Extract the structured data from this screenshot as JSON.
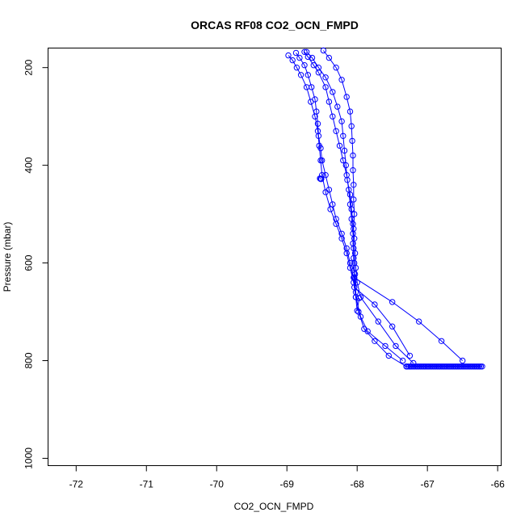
{
  "chart_data": {
    "type": "scatter",
    "title": "ORCAS RF08 CO2_OCN_FMPD",
    "xlabel": "CO2_OCN_FMPD",
    "ylabel": "Pressure (mbar)",
    "xlim": [
      -72.4,
      -65.95
    ],
    "ylim": [
      1015,
      160
    ],
    "y_reversed": true,
    "grid": false,
    "x_ticks": [
      -72,
      -71,
      -70,
      -69,
      -68,
      -67,
      -66
    ],
    "y_ticks": [
      200,
      400,
      600,
      800,
      1000
    ],
    "series_color": "#0000ff",
    "series": [
      {
        "x": [
          -68.75,
          -68.7,
          -68.62,
          -68.55,
          -68.45,
          -68.4,
          -68.35,
          -68.3,
          -68.25,
          -68.2,
          -68.15,
          -68.12,
          -68.1,
          -68.08,
          -68.06,
          -68.05,
          -68.04,
          -68.04,
          -67.5,
          -67.12,
          -66.8,
          -66.5
        ],
        "y": [
          168,
          178,
          195,
          210,
          240,
          270,
          300,
          330,
          360,
          390,
          420,
          450,
          480,
          510,
          540,
          570,
          600,
          630,
          680,
          720,
          760,
          800
        ]
      },
      {
        "x": [
          -68.48,
          -68.4,
          -68.3,
          -68.22,
          -68.15,
          -68.1,
          -68.08,
          -68.07,
          -68.06,
          -68.06,
          -68.05,
          -68.05,
          -68.04,
          -68.05,
          -68.06,
          -68.05,
          -68.04,
          -68.04,
          -67.75,
          -67.5,
          -67.25
        ],
        "y": [
          165,
          180,
          200,
          225,
          260,
          290,
          320,
          350,
          380,
          410,
          440,
          470,
          500,
          530,
          560,
          590,
          620,
          650,
          685,
          730,
          790
        ]
      },
      {
        "x": [
          -68.98,
          -68.92,
          -68.86,
          -68.8,
          -68.72,
          -68.66,
          -68.6,
          -68.56,
          -68.54,
          -68.52,
          -68.5,
          -68.45,
          -68.38,
          -68.3,
          -68.22,
          -68.15,
          -68.1,
          -68.05,
          -68.02,
          -67.95,
          -67.85,
          -67.6,
          -67.35
        ],
        "y": [
          175,
          185,
          200,
          215,
          240,
          270,
          300,
          330,
          360,
          390,
          420,
          455,
          490,
          520,
          550,
          580,
          610,
          640,
          670,
          710,
          740,
          770,
          800
        ]
      },
      {
        "x": [
          -68.87,
          -68.82,
          -68.75,
          -68.7,
          -68.65,
          -68.6,
          -68.58,
          -68.56,
          -68.55,
          -68.52,
          -68.5,
          -68.45,
          -68.4,
          -68.35,
          -68.3,
          -68.22,
          -68.15,
          -68.1,
          -68.05,
          -68.02,
          -67.98,
          -67.9,
          -67.75,
          -67.55,
          -67.3
        ],
        "y": [
          170,
          180,
          195,
          215,
          240,
          265,
          290,
          315,
          340,
          365,
          390,
          420,
          450,
          480,
          510,
          540,
          570,
          600,
          630,
          660,
          700,
          735,
          760,
          790,
          812
        ]
      },
      {
        "x": [
          -68.72,
          -68.64,
          -68.55,
          -68.45,
          -68.35,
          -68.28,
          -68.22,
          -68.2,
          -68.18,
          -68.16,
          -68.14,
          -68.1,
          -68.08,
          -68.06,
          -68.04,
          -68.03,
          -68.02,
          -68.0,
          -67.95,
          -67.7,
          -67.45,
          -67.2
        ],
        "y": [
          168,
          180,
          200,
          220,
          250,
          280,
          310,
          340,
          370,
          400,
          430,
          460,
          490,
          520,
          550,
          580,
          610,
          640,
          670,
          720,
          770,
          805
        ]
      },
      {
        "x": [
          -67.3,
          -67.28,
          -67.26,
          -67.24,
          -67.22,
          -67.2,
          -67.18,
          -67.16,
          -67.14,
          -67.12,
          -67.1,
          -67.08,
          -67.06,
          -67.04,
          -67.02,
          -67.0,
          -66.98,
          -66.96,
          -66.94,
          -66.92,
          -66.9,
          -66.88,
          -66.86,
          -66.84,
          -66.82,
          -66.8,
          -66.78,
          -66.76,
          -66.74,
          -66.72,
          -66.7,
          -66.68,
          -66.66,
          -66.64,
          -66.62,
          -66.6,
          -66.58,
          -66.56,
          -66.54,
          -66.52,
          -66.5,
          -66.48,
          -66.46,
          -66.44,
          -66.42,
          -66.4,
          -66.38,
          -66.36,
          -66.34,
          -66.32,
          -66.3,
          -66.28,
          -66.26,
          -66.24,
          -66.22
        ],
        "y": [
          812,
          812,
          812,
          812,
          812,
          812,
          812,
          812,
          812,
          812,
          812,
          812,
          812,
          812,
          812,
          812,
          812,
          812,
          812,
          812,
          812,
          812,
          812,
          812,
          812,
          812,
          812,
          812,
          812,
          812,
          812,
          812,
          812,
          812,
          812,
          812,
          812,
          812,
          812,
          812,
          812,
          812,
          812,
          812,
          812,
          812,
          812,
          812,
          812,
          812,
          812,
          812,
          812,
          812,
          812
        ]
      },
      {
        "x": [
          -68.53,
          -68.52,
          -68.51
        ],
        "y": [
          427,
          428,
          428
        ]
      },
      {
        "x": [
          -68.03,
          -68.02,
          -68.0,
          -67.97
        ],
        "y": [
          623,
          670,
          698,
          672
        ]
      }
    ]
  }
}
